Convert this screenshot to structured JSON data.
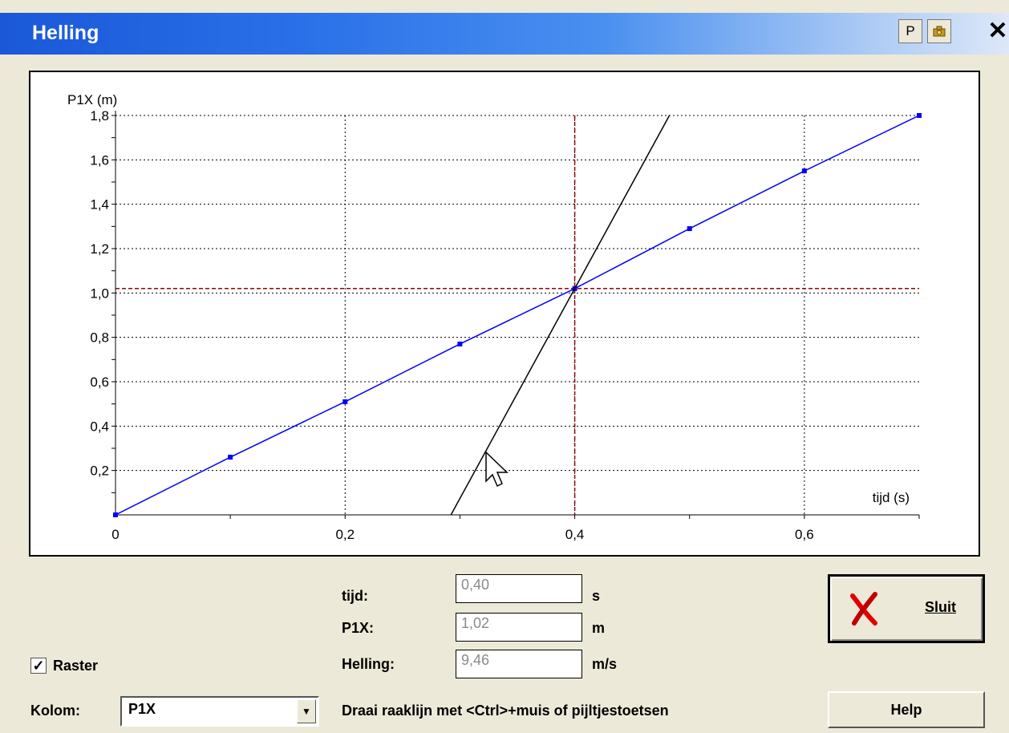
{
  "window": {
    "title": "Helling",
    "btn_p": "P",
    "btn_cam_icon": "camera-icon",
    "close": "✕"
  },
  "chart_data": {
    "type": "line",
    "ylabel": "P1X (m)",
    "xlabel": "tijd (s)",
    "x_ticks": [
      "0",
      "0,2",
      "0,4",
      "0,6"
    ],
    "y_ticks": [
      "0,2",
      "0,4",
      "0,6",
      "0,8",
      "1,0",
      "1,2",
      "1,4",
      "1,6",
      "1,8"
    ],
    "xlim": [
      0,
      0.7
    ],
    "ylim": [
      0,
      1.8
    ],
    "grid": true,
    "series": [
      {
        "x": [
          0,
          0.1,
          0.2,
          0.3,
          0.4,
          0.5,
          0.6,
          0.7
        ],
        "y": [
          0,
          0.26,
          0.51,
          0.77,
          1.02,
          1.29,
          1.55,
          1.8
        ],
        "color": "#0000ff"
      }
    ],
    "tangent": {
      "point": [
        0.4,
        1.02
      ],
      "slope": 9.46,
      "color": "#000000"
    },
    "crosshair": {
      "x": 0.4,
      "y": 1.02,
      "color": "#990000"
    }
  },
  "readout": {
    "tijd_label": "tijd:",
    "tijd_value": "0,40",
    "tijd_unit": "s",
    "p1x_label": "P1X:",
    "p1x_value": "1,02",
    "p1x_unit": "m",
    "helling_label": "Helling:",
    "helling_value": "9,46",
    "helling_unit": "m/s"
  },
  "controls": {
    "raster_label": "Raster",
    "raster_checked": true,
    "kolom_label": "Kolom:",
    "kolom_value": "P1X",
    "hint": "Draai raaklijn met <Ctrl>+muis of pijltjestoetsen",
    "sluit_label": "Sluit",
    "help_label": "Help"
  }
}
